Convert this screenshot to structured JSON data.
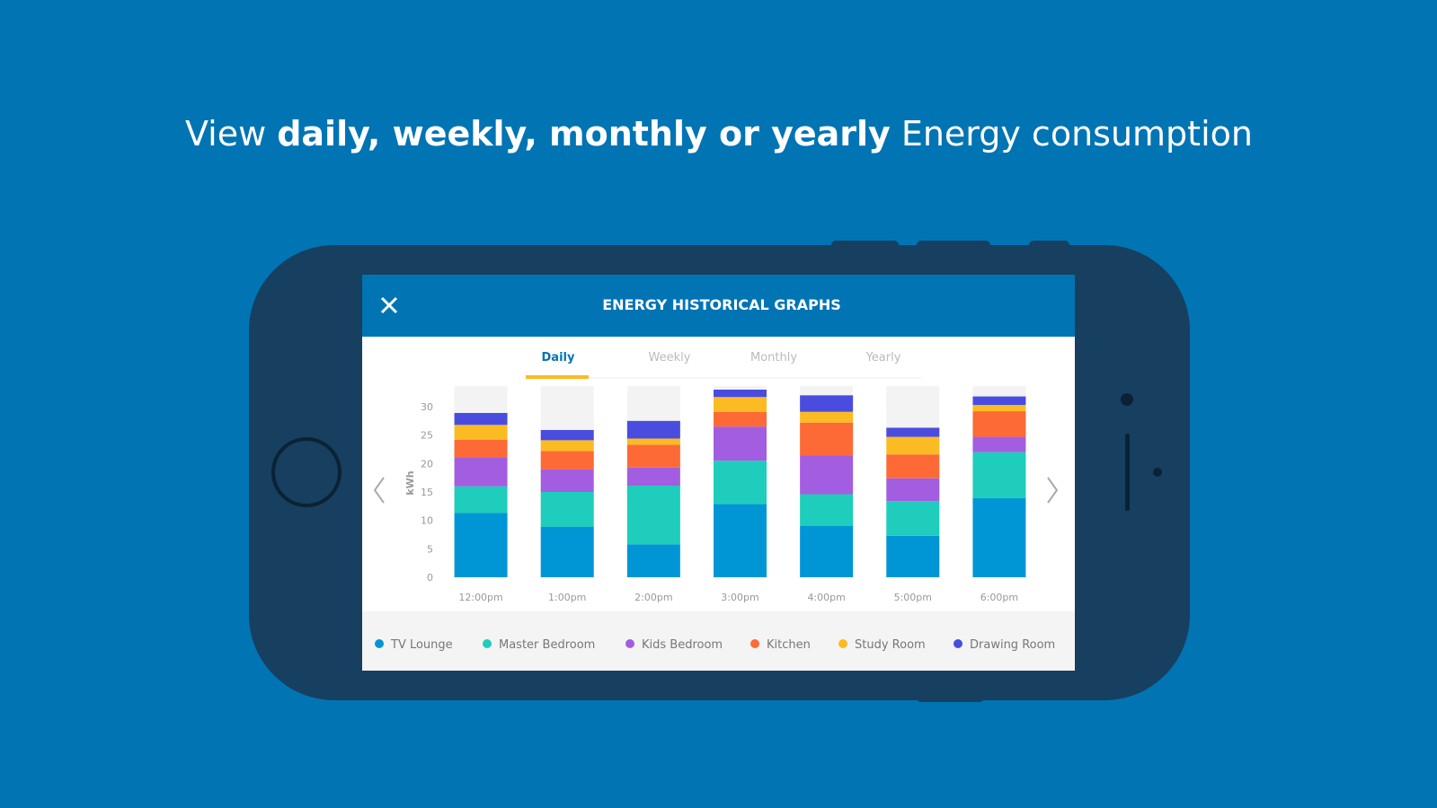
{
  "headline": {
    "prefix": "View",
    "bold": "daily, weekly, monthly or yearly",
    "suffix": "Energy consumption"
  },
  "app": {
    "title": "ENERGY HISTORICAL GRAPHS",
    "tabs": [
      "Daily",
      "Weekly",
      "Monthly",
      "Yearly"
    ]
  },
  "chart_data": {
    "type": "stacked_bar",
    "ylabel": "kWh",
    "categories": [
      "12:00pm",
      "1:00pm",
      "2:00pm",
      "3:00pm",
      "4:00pm",
      "5:00pm",
      "6:00pm"
    ],
    "series": [
      {
        "name": "TV Lounge",
        "color": "#0096d6",
        "values": [
          11.3,
          8.9,
          5.8,
          12.9,
          9,
          7.3,
          13.9
        ]
      },
      {
        "name": "Master Bedroom",
        "color": "#1ecdbb",
        "values": [
          4.7,
          6.1,
          10.3,
          7.6,
          5.6,
          6.1,
          8.1
        ]
      },
      {
        "name": "Kids Bedroom",
        "color": "#a35de0",
        "values": [
          5,
          4,
          3.2,
          6,
          6.8,
          4,
          2.7
        ]
      },
      {
        "name": "Kitchen",
        "color": "#fd6a35",
        "values": [
          3.2,
          3.2,
          4,
          2.6,
          5.8,
          4.2,
          4.5
        ]
      },
      {
        "name": "Study Room",
        "color": "#fbbb22",
        "values": [
          2.6,
          1.9,
          1.1,
          2.6,
          1.9,
          3.1,
          1.1
        ]
      },
      {
        "name": "Drawing Room",
        "color": "#4a4ce0",
        "values": [
          2.1,
          1.8,
          3.1,
          1.3,
          2.9,
          1.6,
          1.5
        ]
      }
    ],
    "ylim": [
      0,
      33
    ],
    "yticks": [
      0,
      5,
      10,
      15,
      20,
      25,
      30
    ],
    "legend": "bottom"
  }
}
